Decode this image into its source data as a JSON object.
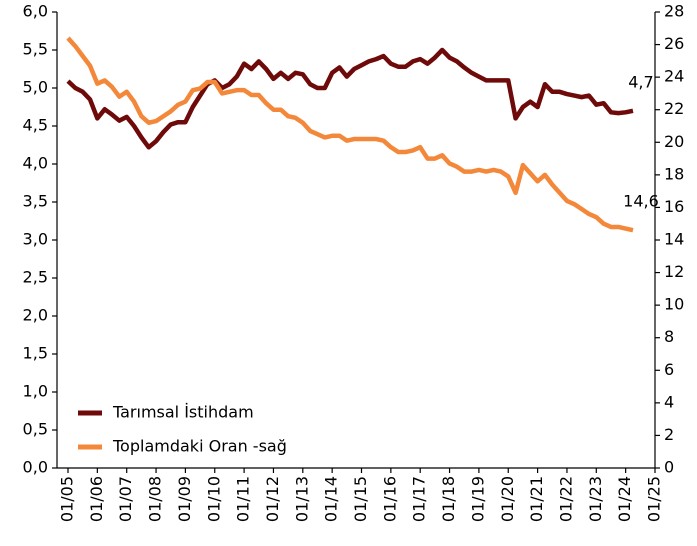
{
  "chart_data": {
    "type": "line",
    "x": [
      2005,
      2005.25,
      2005.5,
      2005.75,
      2006,
      2006.25,
      2006.5,
      2006.75,
      2007,
      2007.25,
      2007.5,
      2007.75,
      2008,
      2008.25,
      2008.5,
      2008.75,
      2009,
      2009.25,
      2009.5,
      2009.75,
      2010,
      2010.25,
      2010.5,
      2010.75,
      2011,
      2011.25,
      2011.5,
      2011.75,
      2012,
      2012.25,
      2012.5,
      2012.75,
      2013,
      2013.25,
      2013.5,
      2013.75,
      2014,
      2014.25,
      2014.5,
      2014.75,
      2015,
      2015.25,
      2015.5,
      2015.75,
      2016,
      2016.25,
      2016.5,
      2016.75,
      2017,
      2017.25,
      2017.5,
      2017.75,
      2018,
      2018.25,
      2018.5,
      2018.75,
      2019,
      2019.25,
      2019.5,
      2019.75,
      2020,
      2020.25,
      2020.5,
      2020.75,
      2021,
      2021.25,
      2021.5,
      2021.75,
      2022,
      2022.25,
      2022.5,
      2022.75,
      2023,
      2023.25,
      2023.5,
      2023.75,
      2024,
      2024.25
    ],
    "series": [
      {
        "name": "Tarımsal İstihdam",
        "color": "#6e0a0a",
        "values": [
          5.09,
          5.0,
          4.95,
          4.85,
          4.6,
          4.72,
          4.65,
          4.57,
          4.62,
          4.5,
          4.35,
          4.22,
          4.3,
          4.42,
          4.52,
          4.55,
          4.55,
          4.75,
          4.9,
          5.05,
          5.1,
          5.0,
          5.05,
          5.15,
          5.32,
          5.25,
          5.35,
          5.25,
          5.12,
          5.2,
          5.12,
          5.2,
          5.18,
          5.05,
          5.0,
          5.0,
          5.2,
          5.27,
          5.15,
          5.25,
          5.3,
          5.35,
          5.38,
          5.42,
          5.32,
          5.28,
          5.28,
          5.35,
          5.38,
          5.32,
          5.4,
          5.5,
          5.4,
          5.35,
          5.27,
          5.2,
          5.15,
          5.1,
          5.1,
          5.1,
          5.1,
          4.6,
          4.75,
          4.82,
          4.75,
          5.05,
          4.95,
          4.95,
          4.92,
          4.9,
          4.88,
          4.9,
          4.78,
          4.8,
          4.68,
          4.67,
          4.68,
          4.7
        ]
      },
      {
        "name": "Toplamdaki Oran -sağ",
        "color": "#f4883a",
        "axis": "y2",
        "values": [
          26.4,
          25.9,
          25.3,
          24.7,
          23.6,
          23.8,
          23.4,
          22.8,
          23.1,
          22.5,
          21.6,
          21.2,
          21.3,
          21.6,
          21.9,
          22.3,
          22.5,
          23.2,
          23.3,
          23.7,
          23.7,
          23.0,
          23.1,
          23.2,
          23.2,
          22.9,
          22.9,
          22.4,
          22.0,
          22.0,
          21.6,
          21.5,
          21.2,
          20.7,
          20.5,
          20.3,
          20.4,
          20.4,
          20.1,
          20.2,
          20.2,
          20.2,
          20.2,
          20.1,
          19.7,
          19.4,
          19.4,
          19.5,
          19.7,
          19.0,
          19.0,
          19.2,
          18.7,
          18.5,
          18.2,
          18.2,
          18.3,
          18.2,
          18.3,
          18.2,
          17.9,
          16.9,
          18.6,
          18.1,
          17.6,
          18.0,
          17.4,
          16.9,
          16.4,
          16.2,
          15.9,
          15.6,
          15.4,
          15.0,
          14.8,
          14.8,
          14.7,
          14.6
        ]
      }
    ],
    "annotations": [
      "4,7",
      "14,6"
    ],
    "xlim": [
      2004.625,
      2025
    ],
    "xticks": [
      {
        "value": 2005,
        "label": "01/05"
      },
      {
        "value": 2006,
        "label": "01/06"
      },
      {
        "value": 2007,
        "label": "01/07"
      },
      {
        "value": 2008,
        "label": "01/08"
      },
      {
        "value": 2009,
        "label": "01/09"
      },
      {
        "value": 2010,
        "label": "01/10"
      },
      {
        "value": 2011,
        "label": "01/11"
      },
      {
        "value": 2012,
        "label": "01/12"
      },
      {
        "value": 2013,
        "label": "01/13"
      },
      {
        "value": 2014,
        "label": "01/14"
      },
      {
        "value": 2015,
        "label": "01/15"
      },
      {
        "value": 2016,
        "label": "01/16"
      },
      {
        "value": 2017,
        "label": "01/17"
      },
      {
        "value": 2018,
        "label": "01/18"
      },
      {
        "value": 2019,
        "label": "01/19"
      },
      {
        "value": 2020,
        "label": "01/20"
      },
      {
        "value": 2021,
        "label": "01/21"
      },
      {
        "value": 2022,
        "label": "01/22"
      },
      {
        "value": 2023,
        "label": "01/23"
      },
      {
        "value": 2024,
        "label": "01/24"
      },
      {
        "value": 2025,
        "label": "01/25"
      }
    ],
    "ylim": [
      0,
      6
    ],
    "yticks": [
      {
        "value": 0,
        "label": "0,0"
      },
      {
        "value": 0.5,
        "label": "0,5"
      },
      {
        "value": 1,
        "label": "1,0"
      },
      {
        "value": 1.5,
        "label": "1,5"
      },
      {
        "value": 2,
        "label": "2,0"
      },
      {
        "value": 2.5,
        "label": "2,5"
      },
      {
        "value": 3,
        "label": "3,0"
      },
      {
        "value": 3.5,
        "label": "3,5"
      },
      {
        "value": 4,
        "label": "4,0"
      },
      {
        "value": 4.5,
        "label": "4,5"
      },
      {
        "value": 5,
        "label": "5,0"
      },
      {
        "value": 5.5,
        "label": "5,5"
      },
      {
        "value": 6,
        "label": "6,0"
      }
    ],
    "y2lim": [
      0,
      28
    ],
    "y2ticks": [
      0,
      2,
      4,
      6,
      8,
      10,
      12,
      14,
      16,
      18,
      20,
      22,
      24,
      26,
      28
    ],
    "legend": "lower left"
  }
}
